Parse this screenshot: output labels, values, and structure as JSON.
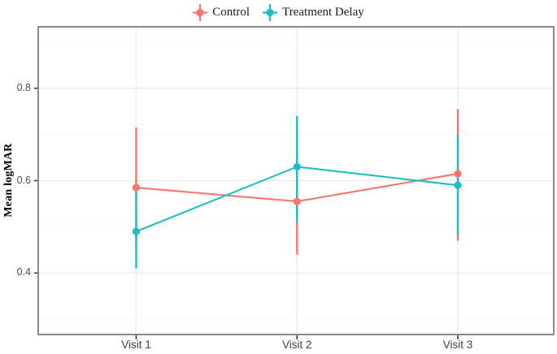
{
  "figure": {
    "background": "#ffffff"
  },
  "chart_data": {
    "type": "line",
    "title": "",
    "xlabel": "",
    "ylabel": "Mean logMAR",
    "categories": [
      "Visit 1",
      "Visit 2",
      "Visit 3"
    ],
    "series": [
      {
        "name": "Control",
        "color": "#f4766e",
        "values": [
          0.585,
          0.555,
          0.615
        ],
        "err_low": [
          0.455,
          0.44,
          0.47
        ],
        "err_high": [
          0.715,
          0.67,
          0.755
        ]
      },
      {
        "name": "Treatment Delay",
        "color": "#1fbec5",
        "values": [
          0.49,
          0.63,
          0.59
        ],
        "err_low": [
          0.41,
          0.51,
          0.48
        ],
        "err_high": [
          0.575,
          0.74,
          0.7
        ]
      }
    ],
    "ylim": [
      0.267,
      0.933
    ],
    "yticks_major": [
      0.4,
      0.6,
      0.8
    ],
    "yticks_minor": [
      0.3,
      0.5,
      0.7,
      0.9
    ],
    "grid": "horizontal major+minor, vertical lines at each visit",
    "legend_position": "top-center",
    "marker_style": "filled point with vertical error bar (pointrange)"
  },
  "styles": {
    "panel_border": "#8a8a8a",
    "grid_major": "#ebebeb",
    "grid_minor": "#f6f6f6",
    "tick_color": "#333333",
    "tick_label_color": "#4d4d4d",
    "axis_label_color": "#000000",
    "legend_text_color": "#1a1a1a"
  }
}
